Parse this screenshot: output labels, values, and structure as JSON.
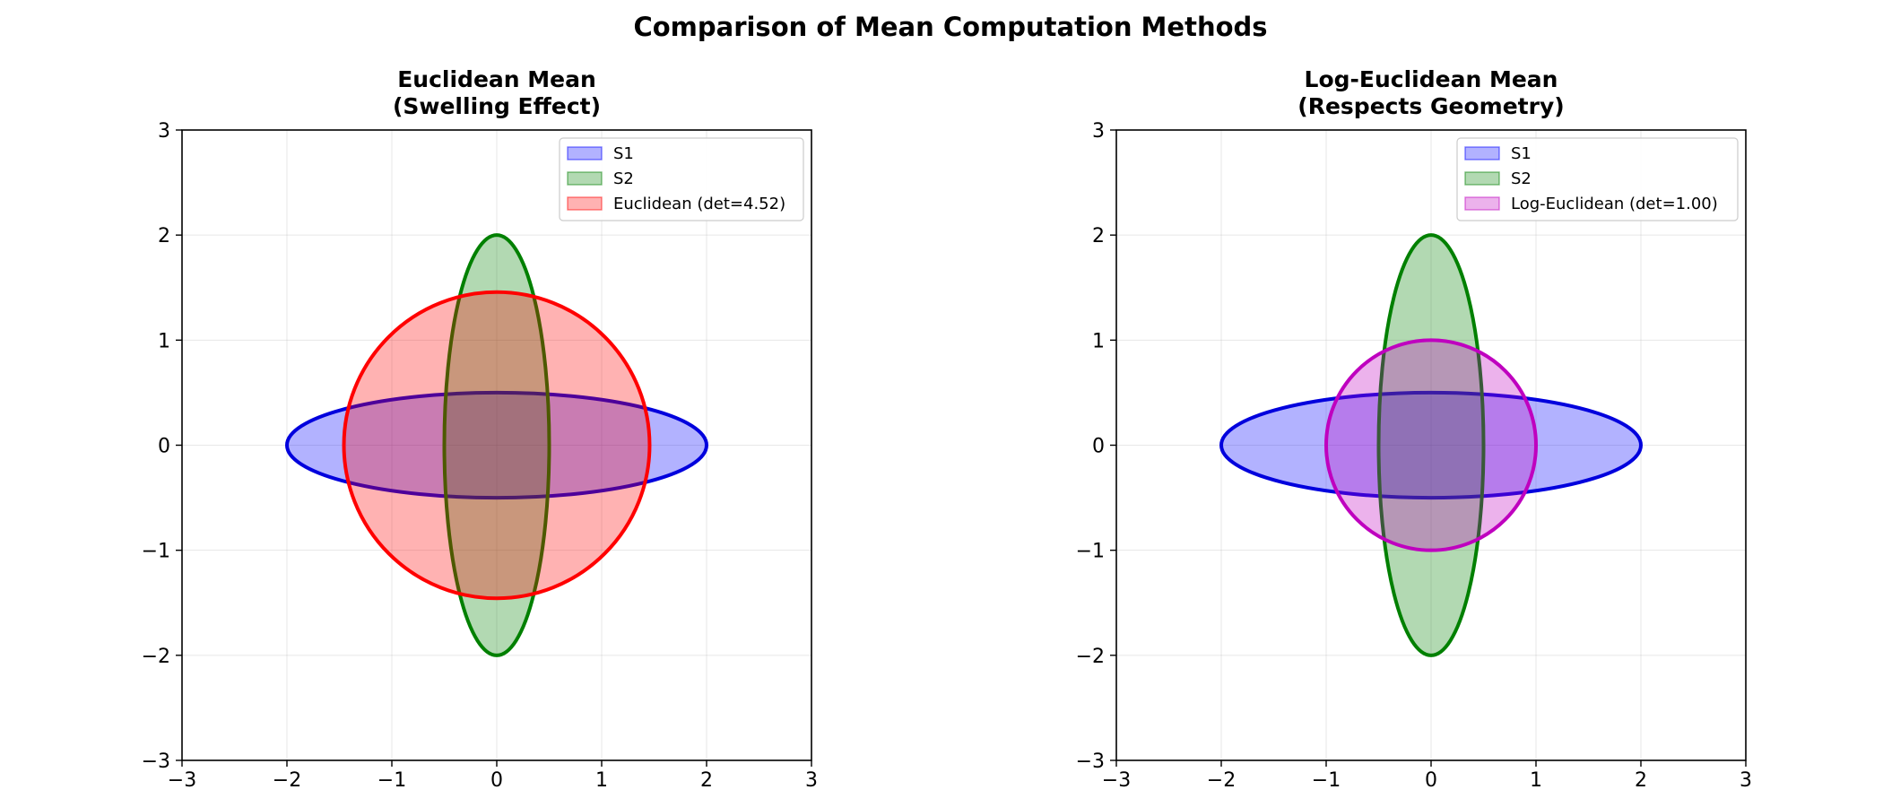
{
  "figure_title": "Comparison of Mean Computation Methods",
  "chart_data": [
    {
      "type": "ellipse-plot",
      "title_line1": "Euclidean Mean",
      "title_line2": "(Swelling Effect)",
      "xlim": [
        -3,
        3
      ],
      "ylim": [
        -3,
        3
      ],
      "xticks": [
        -3,
        -2,
        -1,
        0,
        1,
        2,
        3
      ],
      "yticks": [
        -3,
        -2,
        -1,
        0,
        1,
        2,
        3
      ],
      "tick_labels": [
        "−3",
        "−2",
        "−1",
        "0",
        "1",
        "2",
        "3"
      ],
      "grid": true,
      "legend_position": "top-right",
      "series": [
        {
          "name": "S1",
          "center": [
            0,
            0
          ],
          "rx": 2.0,
          "ry": 0.5,
          "color": "#0000ff",
          "edge": "#0000dd"
        },
        {
          "name": "S2",
          "center": [
            0,
            0
          ],
          "rx": 0.5,
          "ry": 2.0,
          "color": "#008000",
          "edge": "#008000"
        },
        {
          "name": "Euclidean (det=4.52)",
          "center": [
            0,
            0
          ],
          "rx": 1.457,
          "ry": 1.457,
          "color": "#ff0000",
          "edge": "#ff0000"
        }
      ]
    },
    {
      "type": "ellipse-plot",
      "title_line1": "Log-Euclidean Mean",
      "title_line2": "(Respects Geometry)",
      "xlim": [
        -3,
        3
      ],
      "ylim": [
        -3,
        3
      ],
      "xticks": [
        -3,
        -2,
        -1,
        0,
        1,
        2,
        3
      ],
      "yticks": [
        -3,
        -2,
        -1,
        0,
        1,
        2,
        3
      ],
      "tick_labels": [
        "−3",
        "−2",
        "−1",
        "0",
        "1",
        "2",
        "3"
      ],
      "grid": true,
      "legend_position": "top-right",
      "series": [
        {
          "name": "S1",
          "center": [
            0,
            0
          ],
          "rx": 2.0,
          "ry": 0.5,
          "color": "#0000ff",
          "edge": "#0000dd"
        },
        {
          "name": "S2",
          "center": [
            0,
            0
          ],
          "rx": 0.5,
          "ry": 2.0,
          "color": "#008000",
          "edge": "#008000"
        },
        {
          "name": "Log-Euclidean (det=1.00)",
          "center": [
            0,
            0
          ],
          "rx": 1.0,
          "ry": 1.0,
          "color": "#bf00bf",
          "edge": "#bf00bf"
        }
      ]
    }
  ]
}
